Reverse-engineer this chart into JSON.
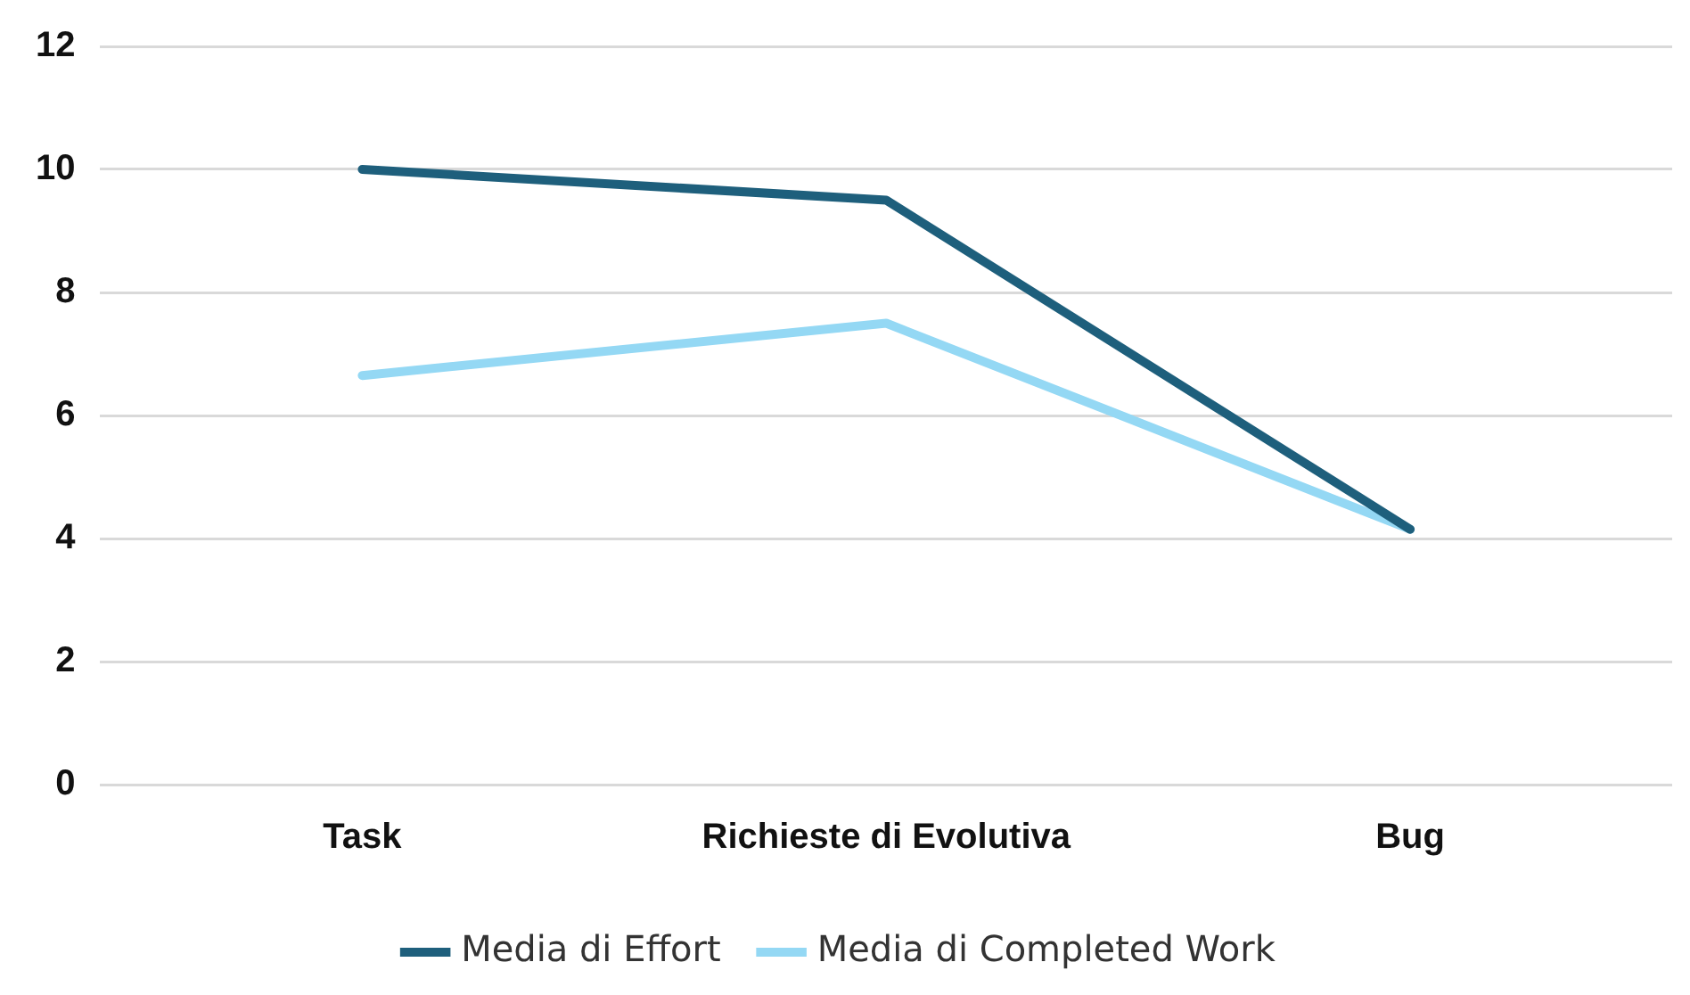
{
  "chart_data": {
    "type": "line",
    "categories": [
      "Task",
      "Richieste di Evolutiva",
      "Bug"
    ],
    "series": [
      {
        "name": "Media di Effort",
        "color": "#1e5f7c",
        "values": [
          10.0,
          9.5,
          4.15
        ]
      },
      {
        "name": "Media di Completed Work",
        "color": "#94d8f4",
        "values": [
          6.65,
          7.5,
          4.15
        ]
      }
    ],
    "ylim": [
      0,
      12
    ],
    "yticks": [
      0,
      2,
      4,
      6,
      8,
      10,
      12
    ],
    "grid": "y",
    "legend": "bottom",
    "marker": "none",
    "line_style": "solid"
  }
}
